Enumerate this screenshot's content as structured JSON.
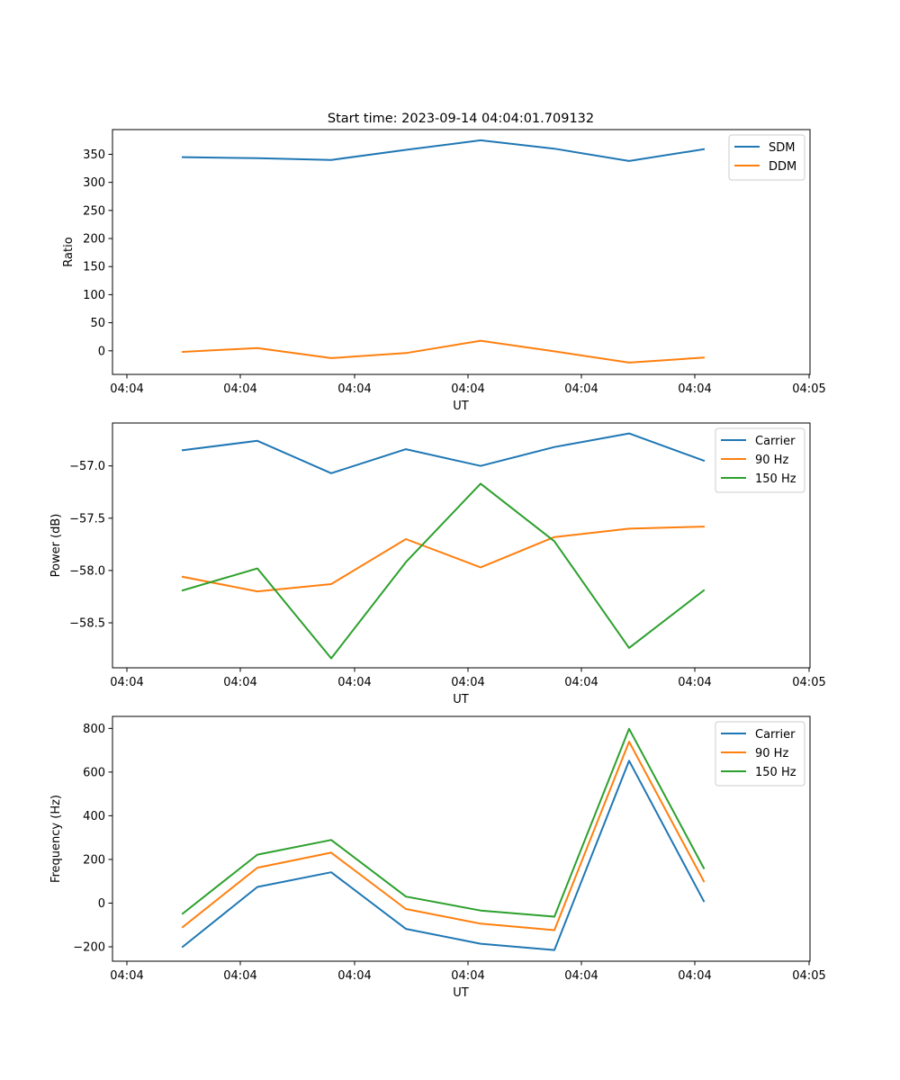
{
  "figure": {
    "title": "Start time: 2023-09-14 04:04:01.709132"
  },
  "chart_data": [
    {
      "type": "line",
      "title": "Start time: 2023-09-14 04:04:01.709132",
      "xlabel": "UT",
      "ylabel": "Ratio",
      "x": [
        0,
        1,
        2,
        3,
        4,
        5,
        6,
        7
      ],
      "xlim": [
        -0.75,
        8.45
      ],
      "xticks": [
        -0.75,
        0.78,
        2.32,
        3.85,
        5.38,
        6.91,
        8.45
      ],
      "xtick_labels": [
        "04:04",
        "04:04",
        "04:04",
        "04:04",
        "04:04",
        "04:04",
        "04:05"
      ],
      "ylim": [
        -42,
        394
      ],
      "yticks": [
        0,
        50,
        100,
        150,
        200,
        250,
        300,
        350
      ],
      "ytick_labels": [
        "0",
        "50",
        "100",
        "150",
        "200",
        "250",
        "300",
        "350"
      ],
      "legend": "top-right",
      "grid": false,
      "series": [
        {
          "name": "SDM",
          "color": "#1f77b4",
          "values": [
            345,
            343,
            340,
            358,
            375,
            360,
            338,
            359
          ]
        },
        {
          "name": "DDM",
          "color": "#ff7f0e",
          "values": [
            -2,
            5,
            -13,
            -4,
            18,
            -1,
            -21,
            -12
          ]
        }
      ]
    },
    {
      "type": "line",
      "title": "",
      "xlabel": "UT",
      "ylabel": "Power (dB)",
      "x": [
        0,
        1,
        2,
        3,
        4,
        5,
        6,
        7
      ],
      "xlim": [
        -0.75,
        8.45
      ],
      "xticks": [
        -0.75,
        0.78,
        2.32,
        3.85,
        5.38,
        6.91,
        8.45
      ],
      "xtick_labels": [
        "04:04",
        "04:04",
        "04:04",
        "04:04",
        "04:04",
        "04:04",
        "04:05"
      ],
      "ylim": [
        -58.93,
        -56.59
      ],
      "yticks": [
        -57.0,
        -57.5,
        -58.0,
        -58.5
      ],
      "ytick_labels": [
        "−57.0",
        "−57.5",
        "−58.0",
        "−58.5"
      ],
      "legend": "top-right",
      "grid": false,
      "series": [
        {
          "name": "Carrier",
          "color": "#1f77b4",
          "values": [
            -56.85,
            -56.76,
            -57.07,
            -56.84,
            -57.0,
            -56.82,
            -56.69,
            -56.95
          ]
        },
        {
          "name": "90 Hz",
          "color": "#ff7f0e",
          "values": [
            -58.06,
            -58.2,
            -58.13,
            -57.7,
            -57.97,
            -57.68,
            -57.6,
            -57.58
          ]
        },
        {
          "name": "150 Hz",
          "color": "#2ca02c",
          "values": [
            -58.19,
            -57.98,
            -58.84,
            -57.92,
            -57.17,
            -57.72,
            -58.74,
            -58.19
          ]
        }
      ]
    },
    {
      "type": "line",
      "title": "",
      "xlabel": "UT",
      "ylabel": "Frequency (Hz)",
      "x": [
        0,
        1,
        2,
        3,
        4,
        5,
        6,
        7
      ],
      "xlim": [
        -0.75,
        8.45
      ],
      "xticks": [
        -0.75,
        0.78,
        2.32,
        3.85,
        5.38,
        6.91,
        8.45
      ],
      "xtick_labels": [
        "04:04",
        "04:04",
        "04:04",
        "04:04",
        "04:04",
        "04:04",
        "04:05"
      ],
      "ylim": [
        -266,
        855
      ],
      "yticks": [
        -200,
        0,
        200,
        400,
        600,
        800
      ],
      "ytick_labels": [
        "−200",
        "0",
        "200",
        "400",
        "600",
        "800"
      ],
      "legend": "top-right",
      "grid": false,
      "series": [
        {
          "name": "Carrier",
          "color": "#1f77b4",
          "values": [
            -200,
            74,
            141,
            -118,
            -186,
            -215,
            652,
            9
          ]
        },
        {
          "name": "90 Hz",
          "color": "#ff7f0e",
          "values": [
            -110,
            162,
            231,
            -27,
            -94,
            -124,
            739,
            100
          ]
        },
        {
          "name": "150 Hz",
          "color": "#2ca02c",
          "values": [
            -48,
            222,
            289,
            30,
            -34,
            -62,
            798,
            160
          ]
        }
      ]
    }
  ]
}
